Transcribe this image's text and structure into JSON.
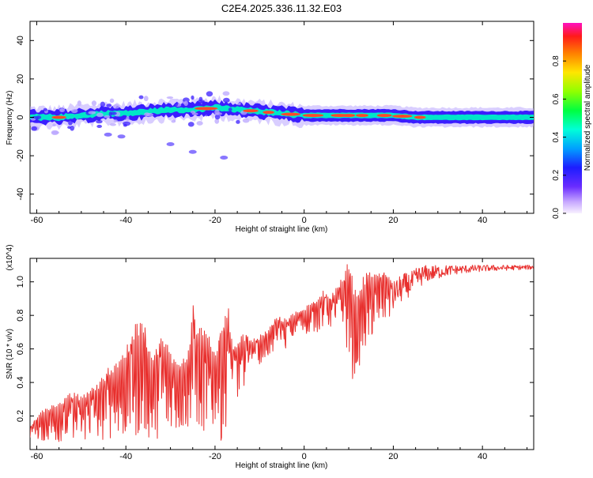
{
  "title": "C2E4.2025.336.11.32.E03",
  "colors": {
    "snr_line": "#e8302e",
    "ridge_outer": "#b9a6ff",
    "ridge_mid": "#3a1dff",
    "ridge_inner": "#00e6c8",
    "ridge_core": "#ff4a2a"
  },
  "chart_data": [
    {
      "type": "heatmap",
      "title": "",
      "xlabel": "Height of straight line (km)",
      "ylabel": "Frequency (Hz)",
      "xlim": [
        -61.5,
        51.5
      ],
      "ylim": [
        -50,
        50
      ],
      "xticks": [
        -60,
        -40,
        -20,
        0,
        20,
        40
      ],
      "xtick_labels": [
        "-60",
        "-40",
        "-20",
        "0",
        "20",
        "40"
      ],
      "yticks": [
        -40,
        -20,
        0,
        20,
        40
      ],
      "ytick_labels": [
        "-40",
        "-20",
        "0",
        "20",
        "40"
      ],
      "colorbar": {
        "label": "Normalized spectral amplitude",
        "range": [
          0,
          1
        ],
        "ticks": [
          0.0,
          0.2,
          0.4,
          0.6,
          0.8
        ],
        "tick_labels": [
          "0.0",
          "0.2",
          "0.4",
          "0.6",
          "0.8"
        ]
      },
      "ridge": {
        "x": [
          -61,
          -55,
          -50,
          -45,
          -40,
          -35,
          -30,
          -25,
          -20,
          -15,
          -10,
          -5,
          0,
          5,
          10,
          15,
          20,
          25,
          30,
          35,
          40,
          45,
          51
        ],
        "center_hz": [
          0,
          0,
          1,
          2,
          2,
          3,
          4,
          4,
          5,
          4,
          3,
          2,
          1,
          1,
          1,
          1,
          1,
          0,
          0,
          0,
          0,
          0,
          0
        ],
        "peaks_x": [
          -55,
          -22,
          -12,
          -8,
          -3,
          2,
          8,
          10,
          13,
          18,
          22,
          26
        ]
      }
    },
    {
      "type": "line",
      "title": "",
      "xlabel": "Height of straight line (km)",
      "ylabel": "SNR (10 * v/v)",
      "y_multiplier": "(x10^4)",
      "xlim": [
        -61.5,
        51.5
      ],
      "ylim": [
        0,
        1.14
      ],
      "xticks": [
        -60,
        -40,
        -20,
        0,
        20,
        40
      ],
      "xtick_labels": [
        "-60",
        "-40",
        "-20",
        "0",
        "20",
        "40"
      ],
      "yticks": [
        0.2,
        0.4,
        0.6,
        0.8,
        1.0
      ],
      "ytick_labels": [
        "0.2",
        "0.4",
        "0.6",
        "0.8",
        "1.0"
      ],
      "series": [
        {
          "name": "SNR",
          "x": [
            -61.5,
            -60,
            -58,
            -56,
            -54,
            -52,
            -50,
            -48,
            -46,
            -44,
            -42,
            -40,
            -38,
            -36,
            -35,
            -34,
            -32,
            -30,
            -28,
            -26,
            -25,
            -24,
            -22,
            -20,
            -18,
            -17,
            -16,
            -15,
            -14,
            -13,
            -12,
            -10,
            -8,
            -6,
            -4,
            -2,
            0,
            2,
            4,
            6,
            8,
            9,
            10,
            11,
            12,
            13,
            14,
            16,
            18,
            20,
            22,
            24,
            26,
            28,
            30,
            32,
            35,
            40,
            45,
            51.5
          ],
          "envelope_low": [
            0.02,
            0.05,
            0.05,
            0.04,
            0.05,
            0.05,
            0.04,
            0.06,
            0.05,
            0.06,
            0.06,
            0.06,
            0.07,
            0.08,
            0.06,
            0.06,
            0.07,
            0.08,
            0.1,
            0.1,
            0.1,
            0.1,
            0.1,
            0.1,
            0.02,
            0.3,
            0.4,
            0.3,
            0.28,
            0.45,
            0.55,
            0.5,
            0.55,
            0.6,
            0.6,
            0.68,
            0.68,
            0.7,
            0.7,
            0.72,
            0.7,
            0.6,
            0.55,
            0.4,
            0.5,
            0.5,
            0.6,
            0.7,
            0.75,
            0.8,
            0.78,
            0.85,
            0.9,
            0.95,
            0.97,
            1.0,
            1.02,
            1.04,
            1.05,
            1.06
          ],
          "envelope_high": [
            0.15,
            0.2,
            0.25,
            0.28,
            0.3,
            0.35,
            0.32,
            0.38,
            0.4,
            0.5,
            0.55,
            0.6,
            0.75,
            0.78,
            0.65,
            0.55,
            0.7,
            0.6,
            0.55,
            0.6,
            0.9,
            0.75,
            0.7,
            0.62,
            0.82,
            0.85,
            0.6,
            0.65,
            0.68,
            0.7,
            0.65,
            0.68,
            0.72,
            0.8,
            0.78,
            0.82,
            0.85,
            0.88,
            0.95,
            0.92,
            1.0,
            1.08,
            1.14,
            1.0,
            0.9,
            1.02,
            1.06,
            1.05,
            1.08,
            1.0,
            1.05,
            1.06,
            1.1,
            1.1,
            1.1,
            1.1,
            1.1,
            1.1,
            1.1,
            1.1
          ]
        }
      ]
    }
  ]
}
